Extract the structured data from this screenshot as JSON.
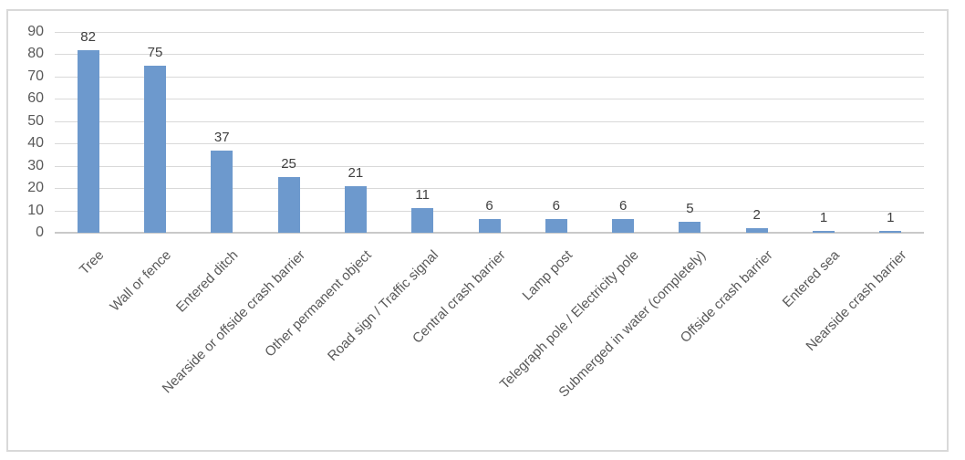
{
  "chart_data": {
    "type": "bar",
    "title": "",
    "xlabel": "",
    "ylabel": "",
    "categories": [
      "Tree",
      "Wall or fence",
      "Entered ditch",
      "Nearside or offside crash barrier",
      "Other permanent object",
      "Road sign / Traffic signal",
      "Central crash barrier",
      "Lamp post",
      "Telegraph pole / Electricity pole",
      "Submerged in water (completely)",
      "Offside crash barrier",
      "Entered sea",
      "Nearside crash barrier"
    ],
    "values": [
      82,
      75,
      37,
      25,
      21,
      11,
      6,
      6,
      6,
      5,
      2,
      1,
      1
    ],
    "data_labels": true,
    "ylim": [
      0,
      90
    ],
    "ytick_step": 10,
    "grid": true,
    "legend": "none",
    "x_label_rotation_deg": 45,
    "colors": {
      "bar": "#6d99cd",
      "gridline": "#d9d9d9",
      "axis_line": "#c9c9c9",
      "frame_border": "#d9d9d9",
      "tick_label": "#595959",
      "value_label": "#404040",
      "background": "#ffffff"
    }
  }
}
